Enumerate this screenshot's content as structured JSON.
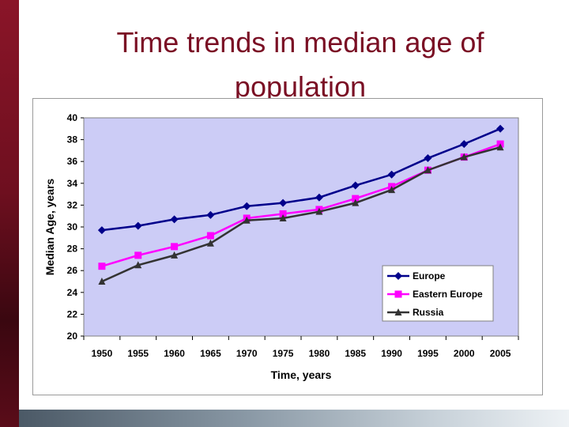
{
  "slide": {
    "title": "Time trends in median age of population"
  },
  "colors": {
    "plot_background": "#ccccf6",
    "title": "#7a0f24",
    "accent_bar": "#7a0f24"
  },
  "chart_data": {
    "type": "line",
    "title": "",
    "xlabel": "Time, years",
    "ylabel": "Median Age, years",
    "x": [
      "1950",
      "1955",
      "1960",
      "1965",
      "1970",
      "1975",
      "1980",
      "1985",
      "1990",
      "1995",
      "2000",
      "2005"
    ],
    "ylim": [
      20,
      40
    ],
    "yticks": [
      20,
      22,
      24,
      26,
      28,
      30,
      32,
      34,
      36,
      38,
      40
    ],
    "grid": false,
    "legend_position": "bottom-right",
    "series": [
      {
        "name": "Europe",
        "color": "#00008b",
        "marker": "diamond",
        "values": [
          29.7,
          30.1,
          30.7,
          31.1,
          31.9,
          32.2,
          32.7,
          33.8,
          34.8,
          36.3,
          37.6,
          39.0
        ]
      },
      {
        "name": "Eastern Europe",
        "color": "#ff00ff",
        "marker": "square",
        "values": [
          26.4,
          27.4,
          28.2,
          29.2,
          30.8,
          31.2,
          31.6,
          32.6,
          33.7,
          35.2,
          36.4,
          37.6
        ]
      },
      {
        "name": "Russia",
        "color": "#333333",
        "marker": "triangle",
        "values": [
          25.0,
          26.5,
          27.4,
          28.5,
          30.6,
          30.8,
          31.4,
          32.2,
          33.4,
          35.2,
          36.4,
          37.3
        ]
      }
    ]
  }
}
